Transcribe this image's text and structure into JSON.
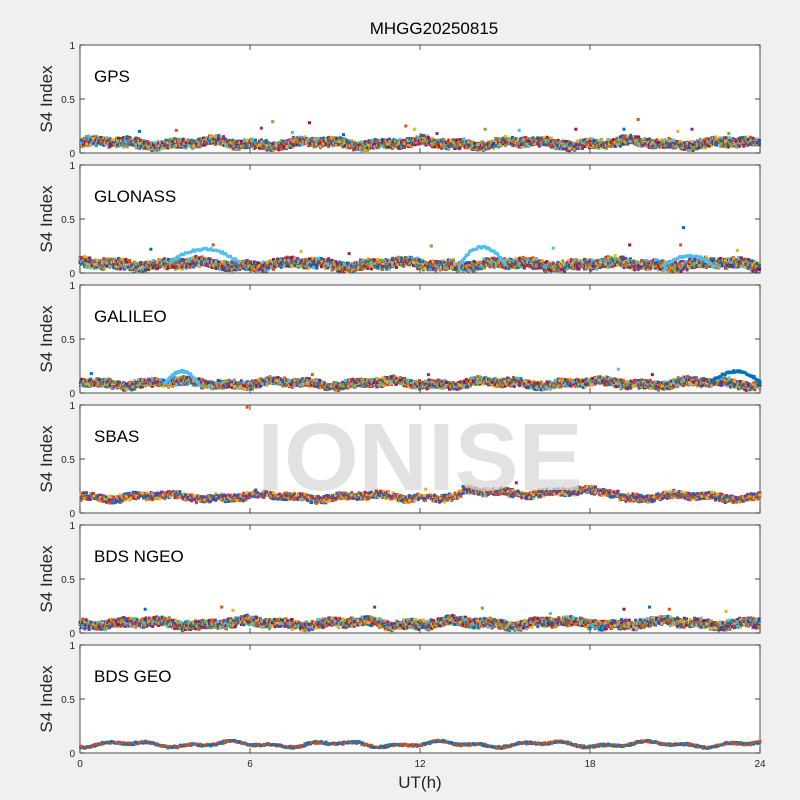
{
  "title": "MHGG20250815",
  "xlabel": "UT(h)",
  "watermark": "IONISE",
  "chart_data": [
    {
      "type": "scatter",
      "panel_label": "GPS",
      "ylabel": "S4 Index",
      "xlim": [
        0,
        24
      ],
      "ylim": [
        0,
        1
      ],
      "xticks": [
        0,
        6,
        12,
        18,
        24
      ],
      "yticks": [
        0,
        0.5,
        1
      ],
      "baseline": 0.09,
      "spread": 0.035,
      "series_colors": [
        "#0072bd",
        "#d95319",
        "#edb120",
        "#7e2f8e",
        "#77ac30",
        "#4dbeee",
        "#a2142f"
      ],
      "outliers": [
        {
          "x": 2.1,
          "y": 0.2
        },
        {
          "x": 3.4,
          "y": 0.21
        },
        {
          "x": 4.6,
          "y": 0.15
        },
        {
          "x": 6.4,
          "y": 0.23
        },
        {
          "x": 6.8,
          "y": 0.29
        },
        {
          "x": 7.5,
          "y": 0.19
        },
        {
          "x": 8.1,
          "y": 0.28
        },
        {
          "x": 9.3,
          "y": 0.17
        },
        {
          "x": 11.5,
          "y": 0.25
        },
        {
          "x": 11.8,
          "y": 0.22
        },
        {
          "x": 12.6,
          "y": 0.18
        },
        {
          "x": 14.3,
          "y": 0.22
        },
        {
          "x": 15.5,
          "y": 0.21
        },
        {
          "x": 17.5,
          "y": 0.22
        },
        {
          "x": 19.2,
          "y": 0.22
        },
        {
          "x": 19.7,
          "y": 0.31
        },
        {
          "x": 21.1,
          "y": 0.2
        },
        {
          "x": 21.6,
          "y": 0.22
        },
        {
          "x": 22.9,
          "y": 0.18
        }
      ]
    },
    {
      "type": "scatter",
      "panel_label": "GLONASS",
      "ylabel": "S4 Index",
      "xlim": [
        0,
        24
      ],
      "ylim": [
        0,
        1
      ],
      "xticks": [
        0,
        6,
        12,
        18,
        24
      ],
      "yticks": [
        0,
        0.5,
        1
      ],
      "baseline": 0.08,
      "spread": 0.04,
      "series_colors": [
        "#0072bd",
        "#d95319",
        "#edb120",
        "#7e2f8e",
        "#77ac30",
        "#4dbeee",
        "#a2142f"
      ],
      "arcs": [
        {
          "x0": 3.2,
          "x1": 5.6,
          "ymin": 0.1,
          "ymax": 0.22,
          "color": "#4dbeee"
        },
        {
          "x0": 13.4,
          "x1": 15.0,
          "ymin": 0.08,
          "ymax": 0.24,
          "color": "#4dbeee"
        },
        {
          "x0": 20.6,
          "x1": 22.4,
          "ymin": 0.06,
          "ymax": 0.16,
          "color": "#4dbeee"
        }
      ],
      "outliers": [
        {
          "x": 2.5,
          "y": 0.22
        },
        {
          "x": 4.7,
          "y": 0.26
        },
        {
          "x": 7.8,
          "y": 0.2
        },
        {
          "x": 9.5,
          "y": 0.18
        },
        {
          "x": 12.4,
          "y": 0.25
        },
        {
          "x": 16.7,
          "y": 0.23
        },
        {
          "x": 19.4,
          "y": 0.26
        },
        {
          "x": 21.3,
          "y": 0.42
        },
        {
          "x": 21.2,
          "y": 0.26
        },
        {
          "x": 23.2,
          "y": 0.21
        }
      ]
    },
    {
      "type": "scatter",
      "panel_label": "GALILEO",
      "ylabel": "S4 Index",
      "xlim": [
        0,
        24
      ],
      "ylim": [
        0,
        1
      ],
      "xticks": [
        0,
        6,
        12,
        18,
        24
      ],
      "yticks": [
        0,
        0.5,
        1
      ],
      "baseline": 0.09,
      "spread": 0.03,
      "series_colors": [
        "#0072bd",
        "#d95319",
        "#edb120",
        "#7e2f8e",
        "#77ac30",
        "#4dbeee",
        "#a2142f"
      ],
      "arcs": [
        {
          "x0": 3.0,
          "x1": 4.2,
          "ymin": 0.08,
          "ymax": 0.2,
          "color": "#4dbeee"
        },
        {
          "x0": 22.3,
          "x1": 24.0,
          "ymin": 0.1,
          "ymax": 0.2,
          "color": "#0072bd"
        }
      ],
      "outliers": [
        {
          "x": 0.4,
          "y": 0.18
        },
        {
          "x": 8.2,
          "y": 0.17
        },
        {
          "x": 10.7,
          "y": 0.14
        },
        {
          "x": 12.3,
          "y": 0.17
        },
        {
          "x": 14.1,
          "y": 0.15
        },
        {
          "x": 19.0,
          "y": 0.22
        },
        {
          "x": 20.2,
          "y": 0.17
        }
      ]
    },
    {
      "type": "scatter",
      "panel_label": "SBAS",
      "ylabel": "S4 Index",
      "xlim": [
        0,
        24
      ],
      "ylim": [
        0,
        1
      ],
      "xticks": [
        0,
        6,
        12,
        18,
        24
      ],
      "yticks": [
        0,
        0.5,
        1
      ],
      "baseline": 0.15,
      "spread": 0.03,
      "series_colors": [
        "#d95319",
        "#7e2f8e",
        "#edb120",
        "#0072bd"
      ],
      "bump": {
        "x0": 13.5,
        "x1": 19.0,
        "amount": 0.04
      },
      "outliers": [
        {
          "x": 5.9,
          "y": 0.98
        },
        {
          "x": 15.4,
          "y": 0.28
        },
        {
          "x": 12.2,
          "y": 0.22
        }
      ]
    },
    {
      "type": "scatter",
      "panel_label": "BDS NGEO",
      "ylabel": "S4 Index",
      "xlim": [
        0,
        24
      ],
      "ylim": [
        0,
        1
      ],
      "xticks": [
        0,
        6,
        12,
        18,
        24
      ],
      "yticks": [
        0,
        0.5,
        1
      ],
      "baseline": 0.09,
      "spread": 0.035,
      "series_colors": [
        "#0072bd",
        "#d95319",
        "#edb120",
        "#7e2f8e",
        "#77ac30",
        "#4dbeee",
        "#a2142f"
      ],
      "outliers": [
        {
          "x": 2.3,
          "y": 0.22
        },
        {
          "x": 5.0,
          "y": 0.24
        },
        {
          "x": 5.4,
          "y": 0.21
        },
        {
          "x": 10.4,
          "y": 0.24
        },
        {
          "x": 14.2,
          "y": 0.23
        },
        {
          "x": 16.6,
          "y": 0.18
        },
        {
          "x": 19.2,
          "y": 0.22
        },
        {
          "x": 20.1,
          "y": 0.24
        },
        {
          "x": 20.8,
          "y": 0.22
        },
        {
          "x": 22.8,
          "y": 0.2
        }
      ]
    },
    {
      "type": "scatter",
      "panel_label": "BDS GEO",
      "ylabel": "S4 Index",
      "xlim": [
        0,
        24
      ],
      "ylim": [
        0,
        1
      ],
      "xticks": [
        0,
        6,
        12,
        18,
        24
      ],
      "yticks": [
        0,
        0.5,
        1
      ],
      "baseline": 0.08,
      "spread": 0.008,
      "series_colors": [
        "#d95319",
        "#0072bd"
      ],
      "outliers": []
    }
  ]
}
